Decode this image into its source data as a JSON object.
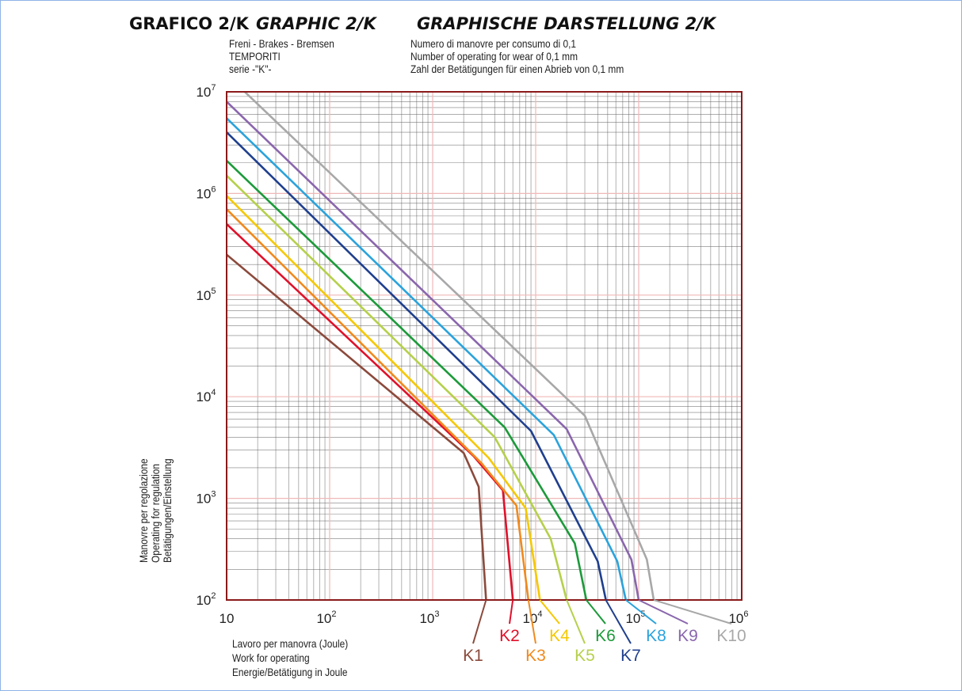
{
  "titles": {
    "it": "GRAFICO 2/K",
    "en": "GRAPHIC 2/K",
    "de": "GRAPHISCHE DARSTELLUNG 2/K"
  },
  "header_left": [
    "Freni - Brakes - Bremsen",
    "TEMPORITI",
    "serie -\"K\"-"
  ],
  "header_right": [
    "Numero di manovre per consumo di 0,1",
    "Number of operating for wear of 0,1 mm",
    "Zahl der Betätigungen für einen Abrieb von 0,1 mm"
  ],
  "colors": {
    "frame": "#8b1a1a",
    "grid": "#555555",
    "grid_decade": "#f0b8b8"
  },
  "chart_data": {
    "type": "line",
    "x_scale": "log",
    "y_scale": "log",
    "xlim": [
      10,
      1000000
    ],
    "ylim": [
      100,
      10000000
    ],
    "grid": true,
    "x_ticks": [
      {
        "value": 10,
        "label": "10"
      },
      {
        "value": 100,
        "label": "10",
        "exp": "2"
      },
      {
        "value": 1000,
        "label": "10",
        "exp": "3"
      },
      {
        "value": 10000,
        "label": "10",
        "exp": "4"
      },
      {
        "value": 100000,
        "label": "10",
        "exp": "5"
      },
      {
        "value": 1000000,
        "label": "10",
        "exp": "6"
      }
    ],
    "y_ticks": [
      {
        "value": 100,
        "label": "10",
        "exp": "2"
      },
      {
        "value": 1000,
        "label": "10",
        "exp": "3"
      },
      {
        "value": 10000,
        "label": "10",
        "exp": "4"
      },
      {
        "value": 100000,
        "label": "10",
        "exp": "5"
      },
      {
        "value": 1000000,
        "label": "10",
        "exp": "6"
      },
      {
        "value": 10000000,
        "label": "10",
        "exp": "7"
      }
    ],
    "xlabel": [
      "Lavoro per manovra (Joule)",
      "Work for operating",
      "Energie/Betätigung in Joule"
    ],
    "ylabel": [
      "Manovre per regolazione",
      "Operating for regulation",
      "Betätigungen/Einstellung"
    ],
    "series": [
      {
        "name": "K1",
        "color": "#8b4a3c",
        "x": [
          10,
          2000,
          2800,
          3300
        ],
        "y": [
          250000,
          2800,
          1300,
          100
        ]
      },
      {
        "name": "K2",
        "color": "#e0102a",
        "x": [
          10,
          2500,
          4800,
          6000
        ],
        "y": [
          500000,
          2600,
          1200,
          100
        ]
      },
      {
        "name": "K3",
        "color": "#f08a1e",
        "x": [
          10,
          3000,
          6500,
          8500
        ],
        "y": [
          700000,
          2200,
          850,
          100
        ]
      },
      {
        "name": "K4",
        "color": "#f5c800",
        "x": [
          10,
          3500,
          8000,
          11000
        ],
        "y": [
          950000,
          2500,
          800,
          100
        ]
      },
      {
        "name": "K5",
        "color": "#b5d04b",
        "x": [
          10,
          4000,
          14000,
          20000
        ],
        "y": [
          1500000,
          4000,
          400,
          100
        ]
      },
      {
        "name": "K6",
        "color": "#1c9a3a",
        "x": [
          10,
          5000,
          24000,
          31000
        ],
        "y": [
          2100000,
          5000,
          360,
          100
        ]
      },
      {
        "name": "K7",
        "color": "#1f3f8e",
        "x": [
          10,
          9000,
          40000,
          48000
        ],
        "y": [
          4000000,
          4600,
          240,
          100
        ]
      },
      {
        "name": "K8",
        "color": "#2aa3dc",
        "x": [
          10,
          15000,
          62000,
          75000
        ],
        "y": [
          5500000,
          4200,
          240,
          100
        ]
      },
      {
        "name": "K9",
        "color": "#8a66ad",
        "x": [
          10,
          20000,
          85000,
          100000
        ],
        "y": [
          8000000,
          4800,
          250,
          100
        ]
      },
      {
        "name": "K10",
        "color": "#a8a8a8",
        "x": [
          15,
          30000,
          120000,
          140000
        ],
        "y": [
          10000000,
          6500,
          250,
          100
        ]
      }
    ]
  }
}
